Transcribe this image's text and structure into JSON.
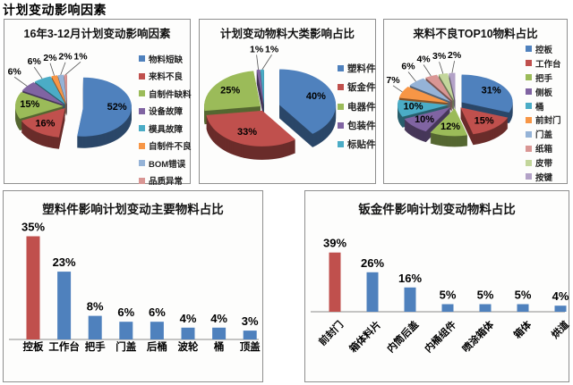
{
  "page_title": "计划变动影响因素",
  "palette": {
    "blue": "#4F81BD",
    "red": "#C0504D",
    "green": "#9BBB59",
    "purple": "#8064A2",
    "teal": "#4BACC6",
    "orange": "#F79646",
    "light_blue": "#95B3D7",
    "light_red": "#D99694",
    "light_green": "#C3D69B",
    "light_purple": "#B3A2C7"
  },
  "chart_data": [
    {
      "type": "pie",
      "title": "16年3-12月计划变动影响因素",
      "unit": "%",
      "legend_position": "right",
      "slices": [
        {
          "label": "物料短缺",
          "value": 52,
          "color": "#4F81BD"
        },
        {
          "label": "来料不良",
          "value": 16,
          "color": "#C0504D"
        },
        {
          "label": "自制件缺料",
          "value": 15,
          "color": "#9BBB59"
        },
        {
          "label": "设备故障",
          "value": 6,
          "color": "#8064A2"
        },
        {
          "label": "模具故障",
          "value": 6,
          "color": "#4BACC6"
        },
        {
          "label": "自制件不良",
          "value": 2,
          "color": "#F79646"
        },
        {
          "label": "BOM错误",
          "value": 2,
          "color": "#95B3D7"
        },
        {
          "label": "品质异常",
          "value": 1,
          "color": "#D99694"
        }
      ]
    },
    {
      "type": "pie",
      "title": "计划变动物料大类影响占比",
      "unit": "%",
      "legend_position": "right",
      "slices": [
        {
          "label": "塑料件",
          "value": 40,
          "color": "#4F81BD"
        },
        {
          "label": "钣金件",
          "value": 33,
          "color": "#C0504D"
        },
        {
          "label": "电器件",
          "value": 25,
          "color": "#9BBB59"
        },
        {
          "label": "包装件",
          "value": 1,
          "color": "#8064A2"
        },
        {
          "label": "标贴件",
          "value": 1,
          "color": "#4BACC6"
        }
      ]
    },
    {
      "type": "pie",
      "title": "来料不良TOP10物料占比",
      "unit": "%",
      "legend_position": "right",
      "slices": [
        {
          "label": "控板",
          "value": 31,
          "color": "#4F81BD"
        },
        {
          "label": "工作台",
          "value": 15,
          "color": "#C0504D"
        },
        {
          "label": "把手",
          "value": 12,
          "color": "#9BBB59"
        },
        {
          "label": "侧板",
          "value": 10,
          "color": "#8064A2"
        },
        {
          "label": "桶",
          "value": 10,
          "color": "#4BACC6"
        },
        {
          "label": "前封门",
          "value": 7,
          "color": "#F79646"
        },
        {
          "label": "门盖",
          "value": 6,
          "color": "#95B3D7"
        },
        {
          "label": "纸箱",
          "value": 4,
          "color": "#D99694"
        },
        {
          "label": "皮带",
          "value": 3,
          "color": "#C3D69B"
        },
        {
          "label": "按键",
          "value": 2,
          "color": "#B3A2C7"
        }
      ]
    },
    {
      "type": "bar",
      "title": "塑料件影响计划变动主要物料占比",
      "unit": "%",
      "ylim": [
        0,
        40
      ],
      "grid": false,
      "categories": [
        "控板",
        "工作台",
        "把手",
        "门盖",
        "后桶",
        "波轮",
        "桶",
        "顶盖"
      ],
      "values": [
        35,
        23,
        8,
        6,
        6,
        4,
        4,
        3
      ],
      "colors": [
        "#C0504D",
        "#4F81BD",
        "#4F81BD",
        "#4F81BD",
        "#4F81BD",
        "#4F81BD",
        "#4F81BD",
        "#4F81BD"
      ]
    },
    {
      "type": "bar",
      "title": "钣金件影响计划变动物料占比",
      "unit": "%",
      "ylim": [
        0,
        45
      ],
      "grid": false,
      "categories": [
        "前封门",
        "箱体料片",
        "内筒后盖",
        "内桶组件",
        "喷涂箱体",
        "箱体",
        "烘道"
      ],
      "values": [
        39,
        26,
        16,
        5,
        5,
        5,
        4
      ],
      "colors": [
        "#C0504D",
        "#4F81BD",
        "#4F81BD",
        "#4F81BD",
        "#4F81BD",
        "#4F81BD",
        "#4F81BD"
      ]
    }
  ]
}
